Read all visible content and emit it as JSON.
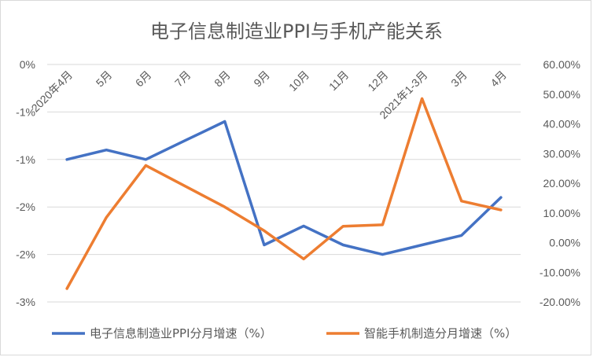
{
  "chart_data": {
    "type": "line",
    "title": "电子信息制造业PPI与手机产能关系",
    "categories": [
      "2020年4月",
      "5月",
      "6月",
      "7月",
      "8月",
      "9月",
      "10月",
      "11月",
      "12月",
      "2021年1-3月",
      "3月",
      "4月"
    ],
    "left_axis": {
      "ticks": [
        0,
        -0.5,
        -1,
        -1.5,
        -2,
        -2.5
      ],
      "tick_labels": [
        "0%",
        "-1%",
        "-1%",
        "-2%",
        "-2%",
        "-3%"
      ],
      "ylim": [
        -2.5,
        0
      ]
    },
    "right_axis": {
      "ticks": [
        60,
        50,
        40,
        30,
        20,
        10,
        0,
        -10,
        -20
      ],
      "tick_labels": [
        "60.00%",
        "50.00%",
        "40.00%",
        "30.00%",
        "20.00%",
        "10.00%",
        "0.00%",
        "-10.00%",
        "-20.00%"
      ],
      "ylim": [
        -20,
        60
      ]
    },
    "series": [
      {
        "name": "电子信息制造业PPI分月增速（%）",
        "axis": "left",
        "color": "#4472c4",
        "values": [
          -1.0,
          -0.9,
          -1.0,
          -0.8,
          -0.6,
          -1.9,
          -1.7,
          -1.9,
          -2.0,
          -1.9,
          -1.8,
          -1.4
        ]
      },
      {
        "name": "智能手机制造分月增速（%）",
        "axis": "right",
        "color": "#ed7d31",
        "values": [
          -15.5,
          8.5,
          26.0,
          19.0,
          12.0,
          4.0,
          -5.5,
          5.5,
          6.0,
          48.5,
          14.0,
          11.0
        ]
      }
    ],
    "grid": true,
    "legend_position": "bottom"
  }
}
